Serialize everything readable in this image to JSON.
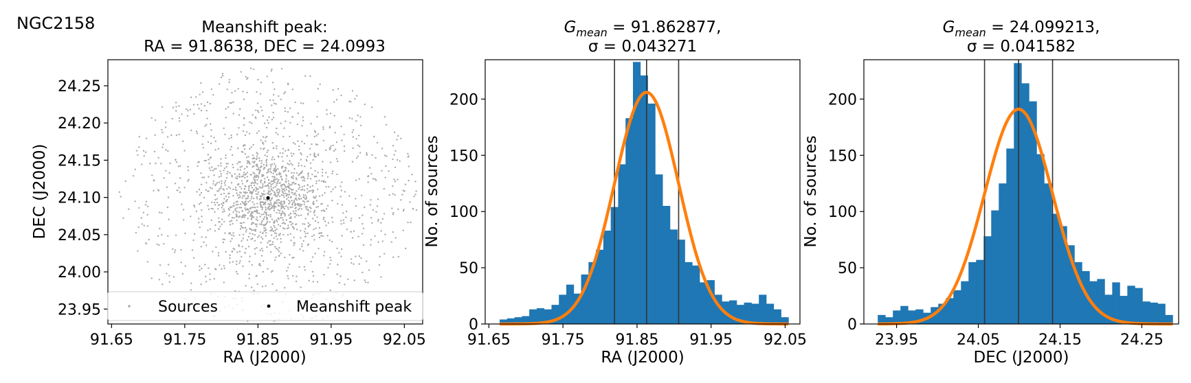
{
  "figure_label": "NGC2158",
  "colors": {
    "scatter": "#a9a9a9",
    "peak": "#000000",
    "bars": "#1f77b4",
    "gauss": "#ff7f0e",
    "vlines": "#333333"
  },
  "chart_data": [
    {
      "type": "scatter",
      "title_line1": "Meanshift peak:",
      "title_line2": "RA = 91.8638, DEC = 24.0993",
      "xlabel": "RA (J2000)",
      "ylabel": "DEC (J2000)",
      "xlim": [
        91.645,
        92.075
      ],
      "ylim": [
        23.93,
        24.285
      ],
      "xticks": [
        91.65,
        91.75,
        91.85,
        91.95,
        92.05
      ],
      "xtick_labels": [
        "91.65",
        "91.75",
        "91.85",
        "91.95",
        "92.05"
      ],
      "yticks": [
        23.95,
        24.0,
        24.05,
        24.1,
        24.15,
        24.2,
        24.25
      ],
      "ytick_labels": [
        "23.95",
        "24.00",
        "24.05",
        "24.10",
        "24.15",
        "24.20",
        "24.25"
      ],
      "cluster_center": [
        91.8638,
        24.0993
      ],
      "field_radius": 0.21,
      "n_sources": 1900,
      "peak": {
        "x": 91.8638,
        "y": 24.0993
      },
      "legend": {
        "placement": "lower-center",
        "entries": [
          "Sources",
          "Meanshift peak"
        ]
      }
    },
    {
      "type": "bar",
      "title_line1": "G_mean = 91.862877,",
      "title_main": "G",
      "title_sub": "mean",
      "title_rest": " = 91.862877,",
      "title_line2": "σ = 0.043271",
      "xlabel": "RA (J2000)",
      "ylabel": "No. of sources",
      "xlim": [
        91.645,
        92.07
      ],
      "ylim": [
        0,
        235
      ],
      "xticks": [
        91.65,
        91.75,
        91.85,
        91.95,
        92.05
      ],
      "xtick_labels": [
        "91.65",
        "91.75",
        "91.85",
        "91.95",
        "92.05"
      ],
      "yticks": [
        0,
        50,
        100,
        150,
        200
      ],
      "ytick_labels": [
        "0",
        "50",
        "100",
        "150",
        "200"
      ],
      "bin_start": 91.6645,
      "bin_width": 0.01,
      "values": [
        4,
        5,
        6,
        7,
        13,
        14,
        13,
        17,
        26,
        35,
        27,
        44,
        55,
        66,
        83,
        104,
        142,
        183,
        233,
        221,
        196,
        133,
        105,
        84,
        75,
        55,
        52,
        37,
        39,
        26,
        20,
        21,
        17,
        19,
        18,
        26,
        18,
        13,
        6
      ],
      "gaussian": {
        "mean": 91.862877,
        "sigma": 0.043271,
        "amplitude": 206
      },
      "vlines": [
        91.8196,
        91.8629,
        91.9062
      ]
    },
    {
      "type": "bar",
      "title_line1": "G_mean = 24.099213,",
      "title_main": "G",
      "title_sub": "mean",
      "title_rest": " = 24.099213,",
      "title_line2": "σ = 0.041582",
      "xlabel": "DEC (J2000)",
      "ylabel": "No. of sources",
      "xlim": [
        23.91,
        24.295
      ],
      "ylim": [
        0,
        235
      ],
      "xticks": [
        23.95,
        24.05,
        24.15,
        24.25
      ],
      "xtick_labels": [
        "23.95",
        "24.05",
        "24.15",
        "24.25"
      ],
      "yticks": [
        0,
        50,
        100,
        150,
        200
      ],
      "ytick_labels": [
        "0",
        "50",
        "100",
        "150",
        "200"
      ],
      "bin_start": 23.927,
      "bin_width": 0.00925,
      "values": [
        8,
        6,
        12,
        16,
        12,
        13,
        10,
        15,
        18,
        23,
        30,
        38,
        55,
        57,
        78,
        101,
        125,
        156,
        232,
        214,
        198,
        151,
        125,
        98,
        87,
        70,
        55,
        47,
        38,
        40,
        26,
        37,
        25,
        34,
        32,
        20,
        19,
        18,
        8
      ],
      "gaussian": {
        "mean": 24.099213,
        "sigma": 0.041582,
        "amplitude": 191
      },
      "vlines": [
        24.0576,
        24.0992,
        24.1408
      ]
    }
  ]
}
